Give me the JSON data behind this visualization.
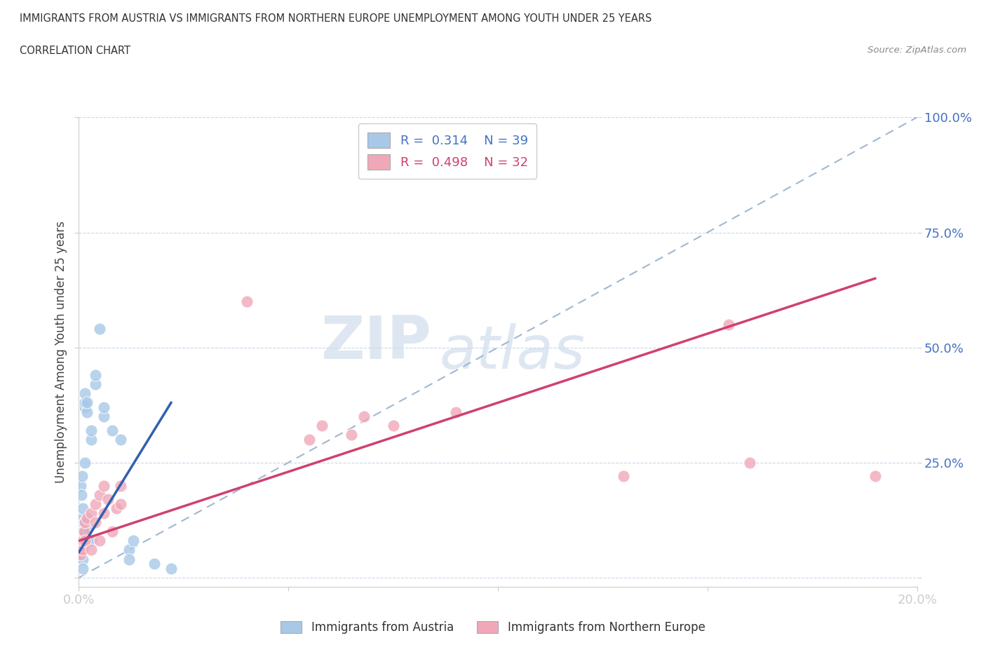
{
  "title_line1": "IMMIGRANTS FROM AUSTRIA VS IMMIGRANTS FROM NORTHERN EUROPE UNEMPLOYMENT AMONG YOUTH UNDER 25 YEARS",
  "title_line2": "CORRELATION CHART",
  "source": "Source: ZipAtlas.com",
  "ylabel": "Unemployment Among Youth under 25 years",
  "watermark_zip": "ZIP",
  "watermark_atlas": "atlas",
  "legend1_label": "Immigrants from Austria",
  "legend2_label": "Immigrants from Northern Europe",
  "R1": 0.314,
  "N1": 39,
  "R2": 0.498,
  "N2": 32,
  "color_blue": "#a8c8e8",
  "color_pink": "#f0a8b8",
  "color_blue_line": "#3060b0",
  "color_pink_line": "#d04070",
  "color_diag": "#a0b8d0",
  "xlim": [
    0.0,
    0.2
  ],
  "ylim": [
    -0.02,
    1.0
  ],
  "austria_x": [
    0.0005,
    0.0007,
    0.0008,
    0.0009,
    0.001,
    0.001,
    0.001,
    0.001,
    0.001,
    0.0015,
    0.0015,
    0.0015,
    0.0015,
    0.0015,
    0.002,
    0.002,
    0.002,
    0.002,
    0.003,
    0.003,
    0.003,
    0.004,
    0.004,
    0.005,
    0.006,
    0.006,
    0.008,
    0.01,
    0.012,
    0.012,
    0.013,
    0.018,
    0.022,
    0.0005,
    0.0007,
    0.0006,
    0.001,
    0.0012,
    0.0015
  ],
  "austria_y": [
    0.05,
    0.08,
    0.06,
    0.1,
    0.12,
    0.13,
    0.08,
    0.04,
    0.02,
    0.37,
    0.38,
    0.4,
    0.1,
    0.07,
    0.36,
    0.38,
    0.11,
    0.08,
    0.3,
    0.32,
    0.08,
    0.42,
    0.44,
    0.54,
    0.35,
    0.37,
    0.32,
    0.3,
    0.06,
    0.04,
    0.08,
    0.03,
    0.02,
    0.2,
    0.22,
    0.18,
    0.15,
    0.12,
    0.25
  ],
  "northern_x": [
    0.0005,
    0.0007,
    0.001,
    0.001,
    0.0012,
    0.0015,
    0.0015,
    0.002,
    0.003,
    0.003,
    0.004,
    0.004,
    0.005,
    0.005,
    0.006,
    0.006,
    0.007,
    0.008,
    0.009,
    0.01,
    0.01,
    0.04,
    0.055,
    0.058,
    0.065,
    0.068,
    0.075,
    0.09,
    0.13,
    0.155,
    0.16,
    0.19
  ],
  "northern_y": [
    0.05,
    0.07,
    0.06,
    0.08,
    0.1,
    0.08,
    0.12,
    0.13,
    0.06,
    0.14,
    0.12,
    0.16,
    0.08,
    0.18,
    0.14,
    0.2,
    0.17,
    0.1,
    0.15,
    0.16,
    0.2,
    0.6,
    0.3,
    0.33,
    0.31,
    0.35,
    0.33,
    0.36,
    0.22,
    0.55,
    0.25,
    0.22
  ],
  "blue_line_x": [
    0.0,
    0.022
  ],
  "blue_line_y": [
    0.055,
    0.38
  ],
  "pink_line_x": [
    0.0,
    0.19
  ],
  "pink_line_y": [
    0.08,
    0.65
  ]
}
